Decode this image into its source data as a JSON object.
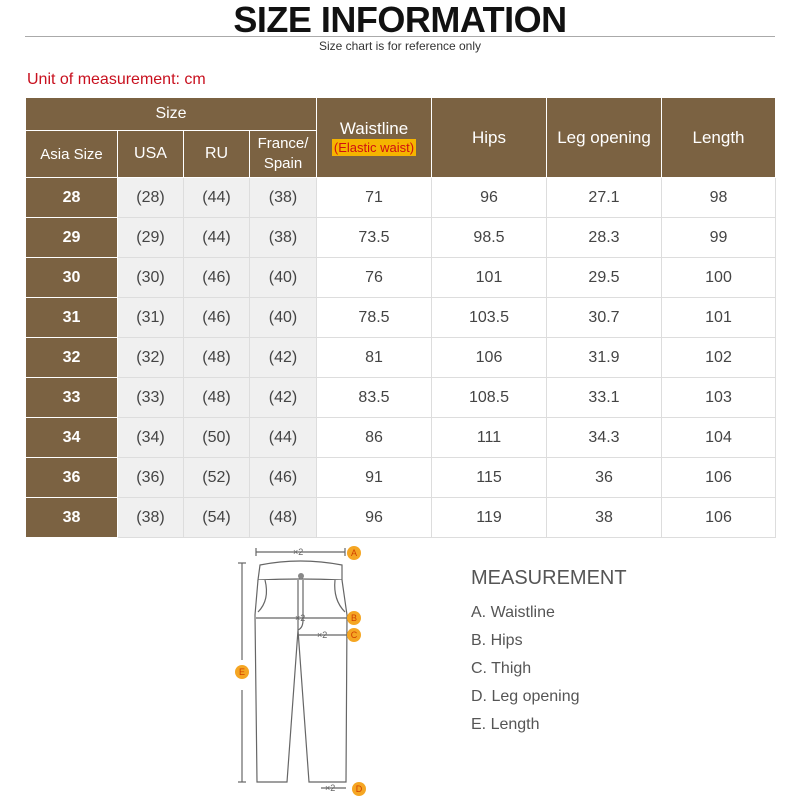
{
  "header": {
    "title": "SIZE INFORMATION",
    "subtitle": "Size chart is for reference only",
    "unit": "Unit of measurement: cm"
  },
  "table": {
    "group_header": "Size",
    "columns": [
      "Asia Size",
      "USA",
      "RU",
      "France/ Spain",
      "Waistline",
      "Hips",
      "Leg opening",
      "Length"
    ],
    "waist_note": "(Elastic waist)",
    "rows": [
      [
        "28",
        "(28)",
        "(44)",
        "(38)",
        "71",
        "96",
        "27.1",
        "98"
      ],
      [
        "29",
        "(29)",
        "(44)",
        "(38)",
        "73.5",
        "98.5",
        "28.3",
        "99"
      ],
      [
        "30",
        "(30)",
        "(46)",
        "(40)",
        "76",
        "101",
        "29.5",
        "100"
      ],
      [
        "31",
        "(31)",
        "(46)",
        "(40)",
        "78.5",
        "103.5",
        "30.7",
        "101"
      ],
      [
        "32",
        "(32)",
        "(48)",
        "(42)",
        "81",
        "106",
        "31.9",
        "102"
      ],
      [
        "33",
        "(33)",
        "(48)",
        "(42)",
        "83.5",
        "108.5",
        "33.1",
        "103"
      ],
      [
        "34",
        "(34)",
        "(50)",
        "(44)",
        "86",
        "111",
        "34.3",
        "104"
      ],
      [
        "36",
        "(36)",
        "(52)",
        "(46)",
        "91",
        "115",
        "36",
        "106"
      ],
      [
        "38",
        "(38)",
        "(54)",
        "(48)",
        "96",
        "119",
        "38",
        "106"
      ]
    ]
  },
  "diagram": {
    "multiplier": "×2",
    "markers": [
      "A",
      "B",
      "C",
      "D",
      "E"
    ],
    "marker_color": "#f5a623"
  },
  "measurement": {
    "title": "MEASUREMENT",
    "items": [
      "A. Waistline",
      "B. Hips",
      "C. Thigh",
      "D. Leg opening",
      "E. Length"
    ]
  },
  "colors": {
    "header_brown": "#7b6242",
    "unit_red": "#c8101e",
    "note_yellow": "#f5b400"
  }
}
